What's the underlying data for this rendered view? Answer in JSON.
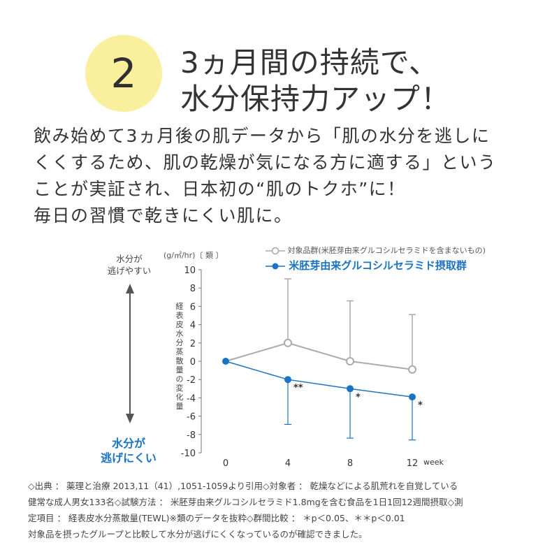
{
  "badge": {
    "number": "2"
  },
  "headline": {
    "line1": "3ヵ月間の持続で、",
    "line2": "水分保持力アップ！"
  },
  "body": {
    "lines": [
      "飲み始めて3ヵ月後の肌データから「肌の水分を逃しに",
      "くくするため、肌の乾燥が気になる方に適する」という",
      "ことが実証され、日本初の“肌のトクホ”に！",
      "毎日の習慣で乾きにくい肌に。"
    ]
  },
  "side_labels": {
    "easy": [
      "水分が",
      "逃げやすい"
    ],
    "hard": [
      "水分が",
      "逃げにくい"
    ]
  },
  "colors": {
    "accent": "#1a73c4",
    "badge": "#f9ef9d",
    "control": "#aaaaaa"
  },
  "chart_data": {
    "type": "line",
    "unit": "(g/㎡/hr)〔 類 〕",
    "ylabel": "経表皮水分蒸散量の変化量",
    "xlabel": "week",
    "x": [
      0,
      4,
      8,
      12
    ],
    "xticks": [
      "0",
      "4",
      "8",
      "12"
    ],
    "ylim": [
      -10,
      10
    ],
    "yticks": [
      "10",
      "8",
      "6",
      "4",
      "2",
      "0",
      "-2",
      "-4",
      "-6",
      "-8",
      "-10"
    ],
    "grid": false,
    "legend_position": "top",
    "series": [
      {
        "name": "対象品群(米胚芽由来グルコシルセラミドを含まないもの)",
        "marker": "open-circle",
        "color": "#aaaaaa",
        "values": [
          0,
          2.0,
          0.0,
          -0.9
        ],
        "error_upper": [
          0,
          9.0,
          6.6,
          5.1
        ]
      },
      {
        "name": "米胚芽由来グルコシルセラミド摂取群",
        "marker": "filled-circle",
        "color": "#1a73c4",
        "values": [
          0,
          -2.0,
          -3.0,
          -3.9
        ],
        "error_lower": [
          0,
          -6.9,
          -8.4,
          -8.6
        ],
        "significance": [
          "",
          "**",
          "*",
          "*"
        ]
      }
    ]
  },
  "footnote": {
    "lines": [
      "◇出典 ： 薬理と治療 2013,11（41）,1051-1059より引用◇対象者 ： 乾燥などによる肌荒れを自覚している",
      "健常な成人男女133名◇試験方法 ： 米胚芽由来グルコシルセラミド1.8mgを含む食品を1日1回12週間摂取◇測",
      "定項目 ： 経表皮水分蒸散量(TEWL)※類のデータを抜粋◇群間比較 ： ＊p＜0.05、＊＊p＜0.01",
      "対象品を摂ったグループと比較して水分が逃げにくくなっているのが確認できました。"
    ]
  }
}
